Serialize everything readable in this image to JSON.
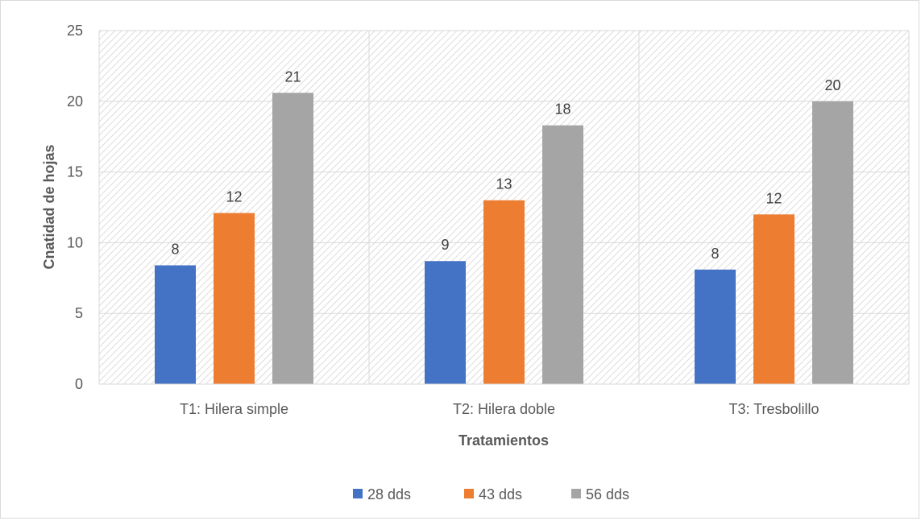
{
  "chart_data": {
    "type": "bar",
    "title": "",
    "xlabel": "Tratamientos",
    "ylabel": "Cnatidad de  hojas",
    "categories": [
      "T1: Hilera simple",
      "T2: Hilera doble",
      "T3: Tresbolillo"
    ],
    "series": [
      {
        "name": "28 dds",
        "color": "#4472c4",
        "values": [
          8.4,
          8.7,
          8.1
        ],
        "labels": [
          "8",
          "9",
          "8"
        ]
      },
      {
        "name": "43 dds",
        "color": "#ed7d31",
        "values": [
          12.1,
          13.0,
          12.0
        ],
        "labels": [
          "12",
          "13",
          "12"
        ]
      },
      {
        "name": "56 dds",
        "color": "#a5a5a5",
        "values": [
          20.6,
          18.3,
          20.0
        ],
        "labels": [
          "21",
          "18",
          "20"
        ]
      }
    ],
    "ylim": [
      0,
      25
    ],
    "yticks": [
      "0",
      "5",
      "10",
      "15",
      "20",
      "25"
    ],
    "grid": true,
    "legend": "bottom"
  }
}
